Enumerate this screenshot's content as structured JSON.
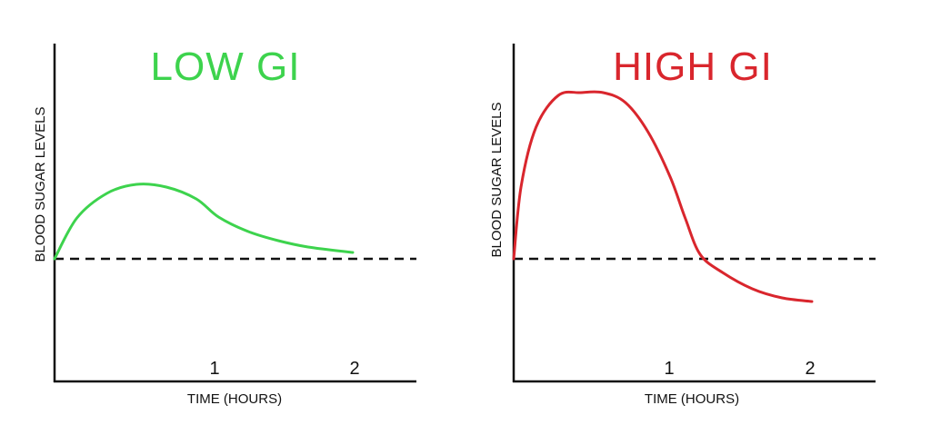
{
  "colors": {
    "low": "#3dd34d",
    "high": "#d9262d",
    "axis": "#111111",
    "baseline": "#111111"
  },
  "chart_data": [
    {
      "type": "line",
      "title": "LOW GI",
      "xlabel": "TIME (HOURS)",
      "ylabel": "BLOOD SUGAR LEVELS",
      "xticks": [
        "1",
        "2"
      ],
      "xlim": [
        0,
        2.4
      ],
      "ylim": [
        -1.4,
        2.0
      ],
      "baseline": 0,
      "grid": false,
      "series": [
        {
          "x": [
            0,
            0.15,
            0.35,
            0.55,
            0.75,
            0.95,
            1.1,
            1.3,
            1.5,
            1.7,
            2.0
          ],
          "y": [
            0,
            0.45,
            0.72,
            0.82,
            0.79,
            0.66,
            0.46,
            0.3,
            0.2,
            0.13,
            0.07
          ]
        }
      ]
    },
    {
      "type": "line",
      "title": "HIGH GI",
      "xlabel": "TIME (HOURS)",
      "ylabel": "BLOOD SUGAR LEVELS",
      "xticks": [
        "1",
        "2"
      ],
      "xlim": [
        0,
        2.4
      ],
      "ylim": [
        -1.4,
        2.0
      ],
      "baseline": 0,
      "grid": false,
      "series": [
        {
          "x": [
            0,
            0.05,
            0.15,
            0.3,
            0.45,
            0.6,
            0.75,
            0.9,
            1.05,
            1.15,
            1.25,
            1.4,
            1.6,
            1.8,
            2.0
          ],
          "y": [
            0,
            0.8,
            1.45,
            1.8,
            1.83,
            1.83,
            1.72,
            1.4,
            0.9,
            0.45,
            0.05,
            -0.15,
            -0.33,
            -0.43,
            -0.47
          ]
        }
      ]
    }
  ]
}
